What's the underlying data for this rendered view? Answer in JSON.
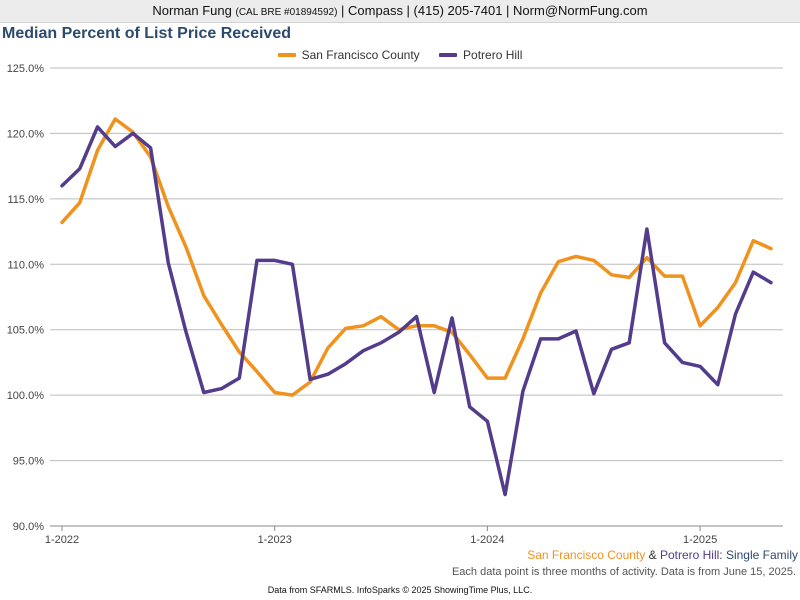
{
  "header": {
    "name": "Norman Fung",
    "license": "(CAL BRE #01894592)",
    "rest": "| Compass | (415) 205-7401 | Norm@NormFung.com"
  },
  "colors": {
    "sf": "#f0921e",
    "potrero": "#533c8b",
    "title": "#2c4a6e"
  },
  "caption": {
    "sf": "San Francisco County",
    "amp": " & ",
    "potrero": "Potrero Hill",
    "suffix": ": Single Family"
  },
  "note": "Each data point is three months of activity. Data is from June 15, 2025.",
  "footer": "Data from SFARMLS. InfoSparks © 2025 ShowingTime Plus, LLC.",
  "chart_data": {
    "type": "line",
    "title": "Median Percent of List Price Received",
    "legend_position": "top",
    "grid": true,
    "ylim": [
      90,
      125
    ],
    "y_ticks": [
      "90.0%",
      "95.0%",
      "100.0%",
      "105.0%",
      "110.0%",
      "115.0%",
      "120.0%",
      "125.0%"
    ],
    "x_tick_labels": [
      "1-2022",
      "1-2023",
      "1-2024",
      "1-2025"
    ],
    "x_range": [
      "2022-01",
      "2025-05"
    ],
    "x": [
      "2022-01",
      "2022-02",
      "2022-03",
      "2022-04",
      "2022-05",
      "2022-06",
      "2022-07",
      "2022-08",
      "2022-09",
      "2022-10",
      "2022-11",
      "2022-12",
      "2023-01",
      "2023-02",
      "2023-03",
      "2023-04",
      "2023-05",
      "2023-06",
      "2023-07",
      "2023-08",
      "2023-09",
      "2023-10",
      "2023-11",
      "2023-12",
      "2024-01",
      "2024-02",
      "2024-03",
      "2024-04",
      "2024-05",
      "2024-06",
      "2024-07",
      "2024-08",
      "2024-09",
      "2024-10",
      "2024-11",
      "2024-12",
      "2025-01",
      "2025-02",
      "2025-03",
      "2025-04",
      "2025-05"
    ],
    "series": [
      {
        "name": "San Francisco County",
        "color": "#f0921e",
        "values": [
          113.2,
          114.7,
          118.7,
          121.1,
          120.1,
          118.2,
          114.4,
          111.3,
          107.6,
          105.4,
          103.3,
          101.8,
          100.2,
          100.0,
          101.0,
          103.6,
          105.1,
          105.3,
          106.0,
          105.0,
          105.3,
          105.3,
          104.8,
          103.1,
          101.3,
          101.3,
          104.3,
          107.8,
          110.2,
          110.6,
          110.3,
          109.2,
          109.0,
          110.5,
          109.1,
          109.1,
          105.3,
          106.7,
          108.6,
          111.8,
          111.2
        ]
      },
      {
        "name": "Potrero Hill",
        "color": "#533c8b",
        "values": [
          116.0,
          117.3,
          120.5,
          119.0,
          120.0,
          118.9,
          110.1,
          104.8,
          100.2,
          100.5,
          101.3,
          110.3,
          110.3,
          110.0,
          101.2,
          101.6,
          102.4,
          103.4,
          104.0,
          104.8,
          106.0,
          100.2,
          105.9,
          99.1,
          98.0,
          92.4,
          100.3,
          104.3,
          104.3,
          104.9,
          100.1,
          103.5,
          104.0,
          112.7,
          104.0,
          102.5,
          102.2,
          100.8,
          106.2,
          109.4,
          108.6
        ]
      }
    ]
  }
}
